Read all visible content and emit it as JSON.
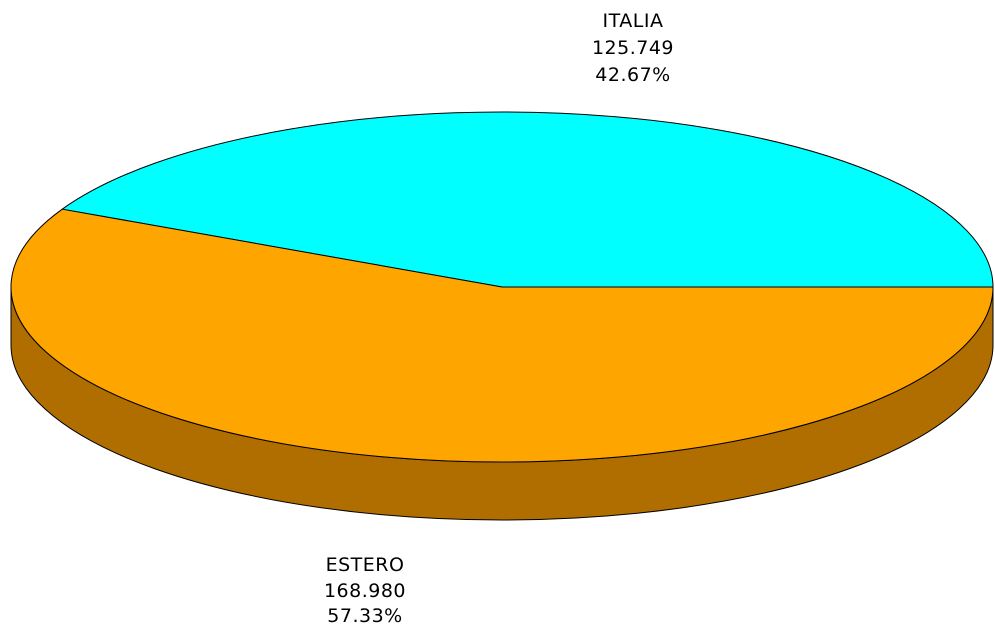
{
  "chart_data": {
    "type": "pie",
    "style": "3d",
    "title": "",
    "slices": [
      {
        "label": "ITALIA",
        "value": 125.749,
        "value_text": "125.749",
        "percent": 42.67,
        "percent_text": "42.67%",
        "color": "#00ffff"
      },
      {
        "label": "ESTERO",
        "value": 168.98,
        "value_text": "168.980",
        "percent": 57.33,
        "percent_text": "57.33%",
        "color": "#ffa500",
        "side_color": "#b06e00"
      }
    ]
  }
}
